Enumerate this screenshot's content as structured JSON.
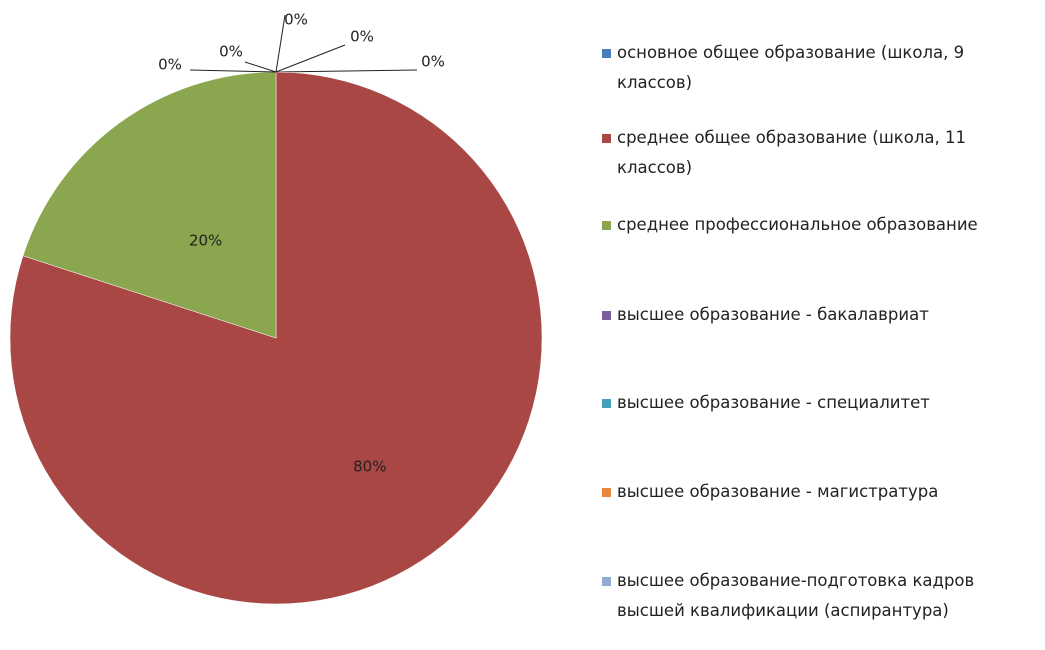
{
  "chart_data": {
    "type": "pie",
    "categories": [
      "основное общее образование (школа, 9 классов)",
      "среднее общее образование (школа, 11 классов)",
      "среднее профессиональное образование",
      "высшее образование - бакалавриат",
      "высшее образование - специалитет",
      "высшее образование - магистратура",
      "высшее образование-подготовка кадров высшей квалификации (аспирантура)"
    ],
    "values": [
      0,
      80,
      20,
      0,
      0,
      0,
      0
    ],
    "value_labels": [
      "0%",
      "80%",
      "20%",
      "0%",
      "0%",
      "0%",
      "0%"
    ],
    "colors": [
      "#4a7ebb",
      "#a94744",
      "#8aa64e",
      "#7b5e9c",
      "#43a0b8",
      "#e9873e",
      "#93acd4"
    ]
  }
}
